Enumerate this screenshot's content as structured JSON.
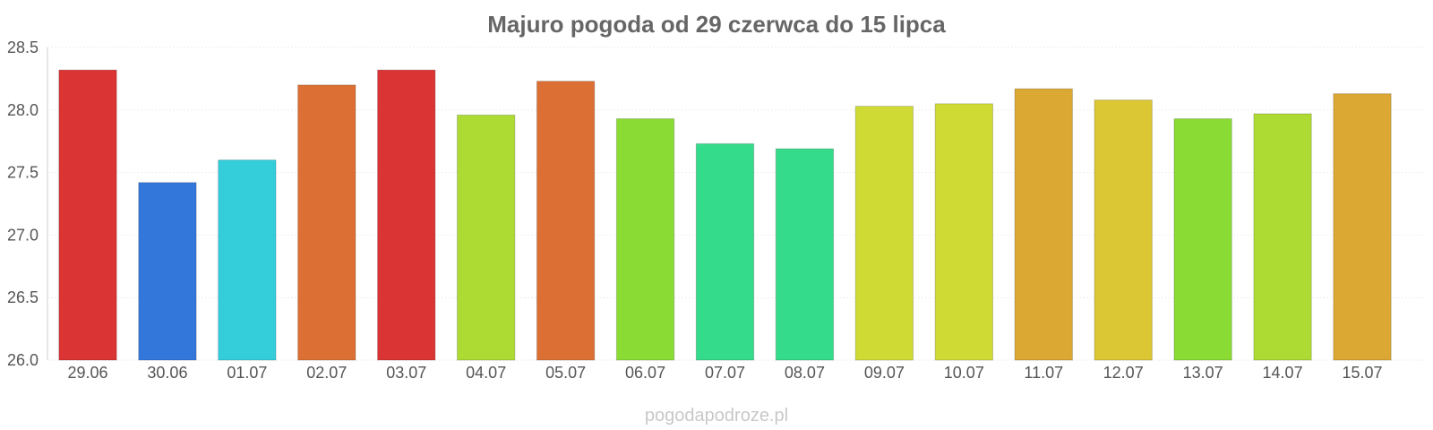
{
  "chart_data": {
    "type": "bar",
    "title": "Majuro pogoda od 29 czerwca do 15 lipca",
    "xlabel": "",
    "ylabel": "",
    "ylim": [
      26.0,
      28.5
    ],
    "yticks": [
      "26.0",
      "26.5",
      "27.0",
      "27.5",
      "28.0",
      "28.5"
    ],
    "grid": true,
    "legend": "none",
    "categories": [
      "29.06",
      "30.06",
      "01.07",
      "02.07",
      "03.07",
      "04.07",
      "05.07",
      "06.07",
      "07.07",
      "08.07",
      "09.07",
      "10.07",
      "11.07",
      "12.07",
      "13.07",
      "14.07",
      "15.07"
    ],
    "values": [
      28.32,
      27.42,
      27.6,
      28.2,
      28.32,
      27.96,
      28.23,
      27.93,
      27.73,
      27.69,
      28.03,
      28.05,
      28.17,
      28.08,
      27.93,
      27.97,
      28.13
    ],
    "colors": [
      "#db3434",
      "#3477db",
      "#34cedb",
      "#db6f34",
      "#db3434",
      "#addb34",
      "#db6f34",
      "#8adb34",
      "#34db8a",
      "#34db8a",
      "#cfdb34",
      "#cfdb34",
      "#dba834",
      "#dbc634",
      "#8adb34",
      "#addb34",
      "#dba834"
    ]
  },
  "footer": {
    "credit": "pogodapodroze.pl"
  }
}
